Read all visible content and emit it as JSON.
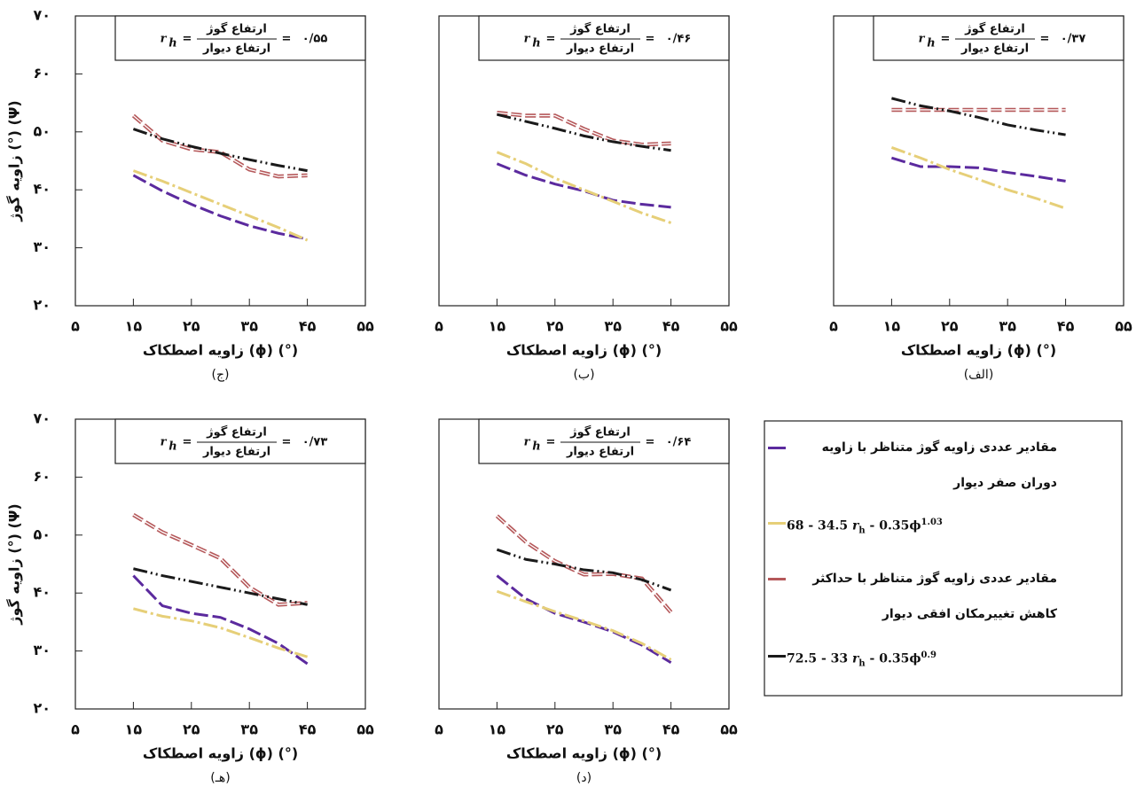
{
  "chart_data": [
    {
      "type": "line",
      "panel_label": "(ج)",
      "ylabel": "زاویه گوژ (°) (Ψ)",
      "xlabel": "زاویه اصطکاک (ϕ) (°)",
      "annotation": {
        "symbol": "r",
        "subscript": "h",
        "equals": "=",
        "numerator": "ارتفاع گوژ",
        "denominator": "ارتفاع دیوار",
        "value": "۰/۵۵"
      },
      "x": [
        15,
        20,
        25,
        30,
        35,
        40,
        45
      ],
      "series": [
        {
          "color": "#5b2a9e",
          "style": "dash",
          "values": [
            42.5,
            39.8,
            37.5,
            35.5,
            33.8,
            32.5,
            31.5
          ]
        },
        {
          "color": "#e6cf78",
          "style": "dashdot",
          "values": [
            43.3,
            41.5,
            39.5,
            37.5,
            35.5,
            33.5,
            31.3
          ]
        },
        {
          "color": "#b5585a",
          "style": "double",
          "values": [
            52.8,
            48.5,
            47.0,
            46.5,
            43.5,
            42.3,
            42.5
          ]
        },
        {
          "color": "#1a1a1a",
          "style": "dashdotdot",
          "values": [
            50.5,
            48.8,
            47.5,
            46.3,
            45.2,
            44.2,
            43.3
          ]
        }
      ],
      "xlim": [
        5,
        55
      ],
      "ylim": [
        20,
        70
      ],
      "xticks": [
        {
          "value": 5,
          "label": "۵"
        },
        {
          "value": 15,
          "label": "۱۵"
        },
        {
          "value": 25,
          "label": "۲۵"
        },
        {
          "value": 35,
          "label": "۳۵"
        },
        {
          "value": 45,
          "label": "۴۵"
        },
        {
          "value": 55,
          "label": "۵۵"
        }
      ],
      "yticks": [
        {
          "value": 20,
          "label": "۲۰"
        },
        {
          "value": 30,
          "label": "۳۰"
        },
        {
          "value": 40,
          "label": "۴۰"
        },
        {
          "value": 50,
          "label": "۵۰"
        },
        {
          "value": 60,
          "label": "۶۰"
        },
        {
          "value": 70,
          "label": "۷۰"
        }
      ]
    },
    {
      "type": "line",
      "panel_label": "(ب)",
      "xlabel": "زاویه اصطکاک (ϕ) (°)",
      "annotation": {
        "symbol": "r",
        "subscript": "h",
        "equals": "=",
        "numerator": "ارتفاع گوژ",
        "denominator": "ارتفاع دیوار",
        "value": "۰/۴۶"
      },
      "x": [
        15,
        20,
        25,
        30,
        35,
        40,
        45
      ],
      "series": [
        {
          "color": "#5b2a9e",
          "style": "dash",
          "values": [
            44.5,
            42.5,
            41.0,
            39.8,
            38.2,
            37.5,
            37.0
          ]
        },
        {
          "color": "#e6cf78",
          "style": "dashdot",
          "values": [
            46.5,
            44.5,
            42.0,
            40.0,
            38.0,
            36.0,
            34.3
          ]
        },
        {
          "color": "#b5585a",
          "style": "double",
          "values": [
            53.3,
            52.8,
            52.8,
            50.5,
            48.5,
            47.8,
            48.0
          ]
        },
        {
          "color": "#1a1a1a",
          "style": "dashdotdot",
          "values": [
            53.0,
            51.8,
            50.6,
            49.3,
            48.3,
            47.5,
            46.8
          ]
        }
      ],
      "xlim": [
        5,
        55
      ],
      "ylim": [
        20,
        70
      ],
      "xticks": [
        {
          "value": 5,
          "label": "۵"
        },
        {
          "value": 15,
          "label": "۱۵"
        },
        {
          "value": 25,
          "label": "۲۵"
        },
        {
          "value": 35,
          "label": "۳۵"
        },
        {
          "value": 45,
          "label": "۴۵"
        },
        {
          "value": 55,
          "label": "۵۵"
        }
      ],
      "yticks": [
        {
          "value": 20,
          "label": ""
        },
        {
          "value": 70,
          "label": ""
        }
      ]
    },
    {
      "type": "line",
      "panel_label": "(الف)",
      "xlabel": "زاویه اصطکاک (ϕ) (°)",
      "annotation": {
        "symbol": "r",
        "subscript": "h",
        "equals": "=",
        "numerator": "ارتفاع گوژ",
        "denominator": "ارتفاع دیوار",
        "value": "۰/۳۷"
      },
      "x": [
        15,
        20,
        25,
        30,
        35,
        40,
        45
      ],
      "series": [
        {
          "color": "#5b2a9e",
          "style": "dash",
          "values": [
            45.5,
            44.0,
            44.0,
            43.8,
            43.0,
            42.3,
            41.5
          ]
        },
        {
          "color": "#e6cf78",
          "style": "dashdot",
          "values": [
            47.3,
            45.5,
            43.5,
            41.8,
            40.0,
            38.5,
            36.8
          ]
        },
        {
          "color": "#b5585a",
          "style": "double",
          "values": [
            53.8,
            53.8,
            53.8,
            53.8,
            53.8,
            53.8,
            53.8
          ]
        },
        {
          "color": "#1a1a1a",
          "style": "dashdotdot",
          "values": [
            55.8,
            54.5,
            53.6,
            52.5,
            51.2,
            50.3,
            49.5
          ]
        }
      ],
      "xlim": [
        5,
        55
      ],
      "ylim": [
        20,
        70
      ],
      "xticks": [
        {
          "value": 5,
          "label": "۵"
        },
        {
          "value": 15,
          "label": "۱۵"
        },
        {
          "value": 25,
          "label": "۲۵"
        },
        {
          "value": 35,
          "label": "۳۵"
        },
        {
          "value": 45,
          "label": "۴۵"
        },
        {
          "value": 55,
          "label": "۵۵"
        }
      ]
    },
    {
      "type": "line",
      "panel_label": "(هـ)",
      "ylabel": "زاویه گوژ (°) (Ψ)",
      "xlabel": "زاویه اصطکاک (ϕ) (°)",
      "annotation": {
        "symbol": "r",
        "subscript": "h",
        "equals": "=",
        "numerator": "ارتفاع گوژ",
        "denominator": "ارتفاع دیوار",
        "value": "۰/۷۳"
      },
      "x": [
        15,
        20,
        25,
        30,
        35,
        40,
        45
      ],
      "series": [
        {
          "color": "#5b2a9e",
          "style": "dash",
          "values": [
            43.0,
            37.8,
            36.5,
            35.8,
            33.8,
            31.3,
            27.8
          ]
        },
        {
          "color": "#e6cf78",
          "style": "dashdot",
          "values": [
            37.3,
            36.0,
            35.2,
            34.0,
            32.3,
            30.5,
            29.0
          ]
        },
        {
          "color": "#b5585a",
          "style": "double",
          "values": [
            53.5,
            50.5,
            48.3,
            46.0,
            41.0,
            38.0,
            38.3
          ]
        },
        {
          "color": "#1a1a1a",
          "style": "dashdotdot",
          "values": [
            44.2,
            43.0,
            42.0,
            41.0,
            40.0,
            39.0,
            38.0
          ]
        }
      ],
      "xlim": [
        5,
        55
      ],
      "ylim": [
        20,
        70
      ],
      "xticks": [
        {
          "value": 5,
          "label": "۵"
        },
        {
          "value": 15,
          "label": "۱۵"
        },
        {
          "value": 25,
          "label": "۲۵"
        },
        {
          "value": 35,
          "label": "۳۵"
        },
        {
          "value": 45,
          "label": "۴۵"
        },
        {
          "value": 55,
          "label": "۵۵"
        }
      ],
      "yticks": [
        {
          "value": 20,
          "label": "۲۰"
        },
        {
          "value": 30,
          "label": "۳۰"
        },
        {
          "value": 40,
          "label": "۴۰"
        },
        {
          "value": 50,
          "label": "۵۰"
        },
        {
          "value": 60,
          "label": "۶۰"
        },
        {
          "value": 70,
          "label": "۷۰"
        }
      ]
    },
    {
      "type": "line",
      "panel_label": "(د)",
      "xlabel": "زاویه اصطکاک (ϕ) (°)",
      "annotation": {
        "symbol": "r",
        "subscript": "h",
        "equals": "=",
        "numerator": "ارتفاع گوژ",
        "denominator": "ارتفاع دیوار",
        "value": "۰/۶۴"
      },
      "x": [
        15,
        20,
        25,
        30,
        35,
        40,
        45
      ],
      "series": [
        {
          "color": "#5b2a9e",
          "style": "dash",
          "values": [
            43.0,
            39.0,
            36.5,
            35.0,
            33.3,
            31.0,
            28.0
          ]
        },
        {
          "color": "#e6cf78",
          "style": "dashdot",
          "values": [
            40.3,
            38.5,
            36.8,
            35.2,
            33.5,
            31.3,
            28.5
          ]
        },
        {
          "color": "#b5585a",
          "style": "double",
          "values": [
            53.3,
            48.8,
            45.5,
            43.2,
            43.3,
            42.5,
            36.7
          ]
        },
        {
          "color": "#1a1a1a",
          "style": "dashdotdot",
          "values": [
            47.5,
            45.8,
            45.0,
            44.0,
            43.5,
            42.3,
            40.5
          ]
        }
      ],
      "xlim": [
        5,
        55
      ],
      "ylim": [
        20,
        70
      ],
      "xticks": [
        {
          "value": 5,
          "label": "۵"
        },
        {
          "value": 15,
          "label": "۱۵"
        },
        {
          "value": 25,
          "label": "۲۵"
        },
        {
          "value": 35,
          "label": "۳۵"
        },
        {
          "value": 45,
          "label": "۴۵"
        },
        {
          "value": 55,
          "label": "۵۵"
        }
      ]
    }
  ],
  "legend": [
    {
      "name": "مقادیر عددی زاویه گوژ متناظر با زاویه دوران صفر دیوار",
      "color": "#5b2a9e"
    },
    {
      "formula": {
        "a": "68 - 34.5 ",
        "r": "r",
        "sub": "h",
        "b": " - 0.35ϕ",
        "sup": "1.03"
      },
      "color": "#e6cf78"
    },
    {
      "name": "مقادیر عددی زاویه گوژ متناظر با حداکثر کاهش تغییرمکان افقی دیوار",
      "color": "#b5585a"
    },
    {
      "formula": {
        "a": "72.5 - 33 ",
        "r": "r",
        "sub": "h",
        "b": " - 0.35ϕ",
        "sup": "0.9"
      },
      "color": "#1a1a1a"
    }
  ]
}
